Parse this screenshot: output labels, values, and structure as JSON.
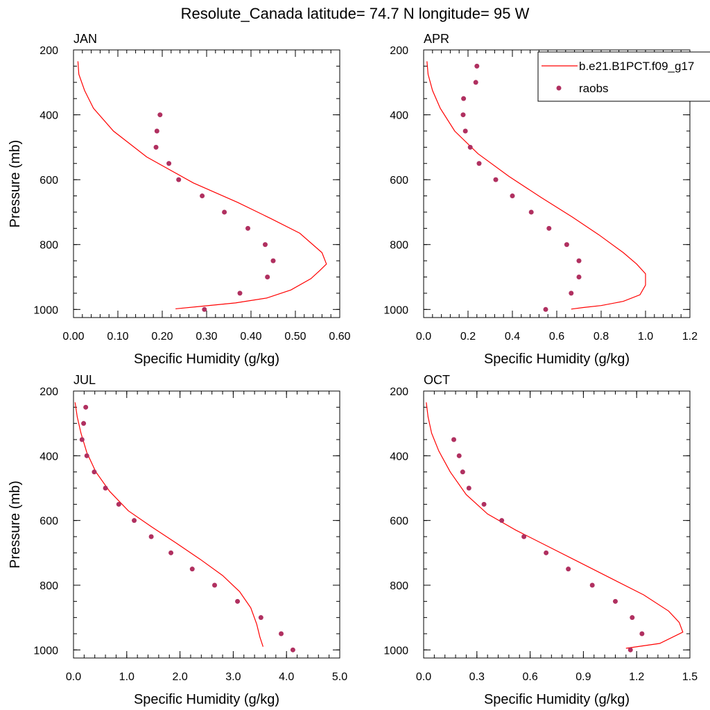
{
  "figure_title": "Resolute_Canada  latitude= 74.7 N longitude= 95 W",
  "legend": {
    "entries": [
      "b.e21.B1PCT.f09_g17",
      "raobs"
    ],
    "line_color": "#ff0000",
    "marker_color": "#b03060"
  },
  "chart_data": [
    {
      "type": "line",
      "panel": "JAN",
      "xlabel": "Specific Humidity (g/kg)",
      "ylabel": "Pressure (mb)",
      "xlim": [
        0,
        0.6
      ],
      "ylim": [
        1025,
        200
      ],
      "xticks": [
        "0.00",
        "0.10",
        "0.20",
        "0.30",
        "0.40",
        "0.50",
        "0.60"
      ],
      "xtick_values": [
        0,
        0.1,
        0.2,
        0.3,
        0.4,
        0.5,
        0.6
      ],
      "yticks": [
        "200",
        "400",
        "600",
        "800",
        "1000"
      ],
      "ytick_values": [
        200,
        400,
        600,
        800,
        1000
      ],
      "series": [
        {
          "name": "b.e21.B1PCT.f09_g17",
          "kind": "line",
          "x": [
            0.01,
            0.012,
            0.025,
            0.045,
            0.09,
            0.165,
            0.27,
            0.37,
            0.445,
            0.51,
            0.56,
            0.57,
            0.555,
            0.535,
            0.49,
            0.435,
            0.365,
            0.29,
            0.23
          ],
          "y": [
            235,
            275,
            325,
            380,
            450,
            530,
            610,
            670,
            720,
            765,
            825,
            860,
            880,
            905,
            940,
            965,
            980,
            990,
            998
          ]
        },
        {
          "name": "raobs",
          "kind": "scatter",
          "x": [
            0.195,
            0.188,
            0.186,
            0.215,
            0.237,
            0.29,
            0.34,
            0.393,
            0.432,
            0.45,
            0.437,
            0.375,
            0.295
          ],
          "y": [
            400,
            450,
            500,
            550,
            600,
            650,
            700,
            750,
            800,
            850,
            900,
            950,
            1000
          ]
        }
      ]
    },
    {
      "type": "line",
      "panel": "APR",
      "xlabel": "Specific Humidity (g/kg)",
      "ylabel": "",
      "xlim": [
        0,
        1.2
      ],
      "ylim": [
        1025,
        200
      ],
      "xticks": [
        "0.0",
        "0.2",
        "0.4",
        "0.6",
        "0.8",
        "1.0",
        "1.2"
      ],
      "xtick_values": [
        0,
        0.2,
        0.4,
        0.6,
        0.8,
        1.0,
        1.2
      ],
      "yticks": [
        "200",
        "400",
        "600",
        "800",
        "1000"
      ],
      "ytick_values": [
        200,
        400,
        600,
        800,
        1000
      ],
      "series": [
        {
          "name": "b.e21.B1PCT.f09_g17",
          "kind": "line",
          "x": [
            0.015,
            0.02,
            0.04,
            0.075,
            0.14,
            0.245,
            0.385,
            0.53,
            0.67,
            0.79,
            0.9,
            0.96,
            1.0,
            1.0,
            0.975,
            0.9,
            0.8,
            0.72,
            0.665
          ],
          "y": [
            235,
            275,
            325,
            380,
            450,
            520,
            590,
            655,
            715,
            770,
            825,
            860,
            890,
            925,
            955,
            975,
            988,
            994,
            999
          ]
        },
        {
          "name": "raobs",
          "kind": "scatter",
          "x": [
            0.24,
            0.235,
            0.18,
            0.178,
            0.188,
            0.21,
            0.25,
            0.325,
            0.4,
            0.485,
            0.565,
            0.645,
            0.7,
            0.7,
            0.665,
            0.55
          ],
          "y": [
            250,
            300,
            350,
            400,
            450,
            500,
            550,
            600,
            650,
            700,
            750,
            800,
            850,
            900,
            950,
            1000
          ]
        }
      ]
    },
    {
      "type": "line",
      "panel": "JUL",
      "xlabel": "Specific Humidity (g/kg)",
      "ylabel": "Pressure (mb)",
      "xlim": [
        0,
        5
      ],
      "ylim": [
        1025,
        200
      ],
      "xticks": [
        "0.0",
        "1.0",
        "2.0",
        "3.0",
        "4.0",
        "5.0"
      ],
      "xtick_values": [
        0,
        1,
        2,
        3,
        4,
        5
      ],
      "yticks": [
        "200",
        "400",
        "600",
        "800",
        "1000"
      ],
      "ytick_values": [
        200,
        400,
        600,
        800,
        1000
      ],
      "series": [
        {
          "name": "b.e21.B1PCT.f09_g17",
          "kind": "line",
          "x": [
            0.03,
            0.07,
            0.14,
            0.25,
            0.42,
            0.68,
            1.03,
            1.47,
            1.93,
            2.38,
            2.8,
            3.12,
            3.33,
            3.44,
            3.5,
            3.56
          ],
          "y": [
            235,
            280,
            330,
            390,
            450,
            510,
            570,
            620,
            670,
            720,
            770,
            820,
            870,
            920,
            960,
            990
          ]
        },
        {
          "name": "raobs",
          "kind": "scatter",
          "x": [
            0.23,
            0.19,
            0.16,
            0.25,
            0.39,
            0.6,
            0.85,
            1.14,
            1.46,
            1.83,
            2.23,
            2.65,
            3.08,
            3.52,
            3.9,
            4.12
          ],
          "y": [
            250,
            300,
            350,
            400,
            450,
            500,
            550,
            600,
            650,
            700,
            750,
            800,
            850,
            900,
            950,
            1000
          ]
        }
      ]
    },
    {
      "type": "line",
      "panel": "OCT",
      "xlabel": "Specific Humidity (g/kg)",
      "ylabel": "",
      "xlim": [
        0,
        1.5
      ],
      "ylim": [
        1025,
        200
      ],
      "xticks": [
        "0.0",
        "0.3",
        "0.6",
        "0.9",
        "1.2",
        "1.5"
      ],
      "xtick_values": [
        0,
        0.3,
        0.6,
        0.9,
        1.2,
        1.5
      ],
      "yticks": [
        "200",
        "400",
        "600",
        "800",
        "1000"
      ],
      "ytick_values": [
        200,
        400,
        600,
        800,
        1000
      ],
      "series": [
        {
          "name": "b.e21.B1PCT.f09_g17",
          "kind": "line",
          "x": [
            0.015,
            0.025,
            0.045,
            0.085,
            0.15,
            0.24,
            0.36,
            0.52,
            0.7,
            0.88,
            1.06,
            1.24,
            1.38,
            1.44,
            1.46,
            1.33,
            1.14
          ],
          "y": [
            235,
            280,
            330,
            385,
            450,
            520,
            580,
            630,
            680,
            730,
            780,
            830,
            880,
            915,
            945,
            980,
            995
          ]
        },
        {
          "name": "raobs",
          "kind": "scatter",
          "x": [
            0.17,
            0.2,
            0.22,
            0.255,
            0.34,
            0.44,
            0.565,
            0.69,
            0.815,
            0.95,
            1.08,
            1.175,
            1.23,
            1.165
          ],
          "y": [
            350,
            400,
            450,
            500,
            550,
            600,
            650,
            700,
            750,
            800,
            850,
            900,
            950,
            1000
          ]
        }
      ]
    }
  ]
}
